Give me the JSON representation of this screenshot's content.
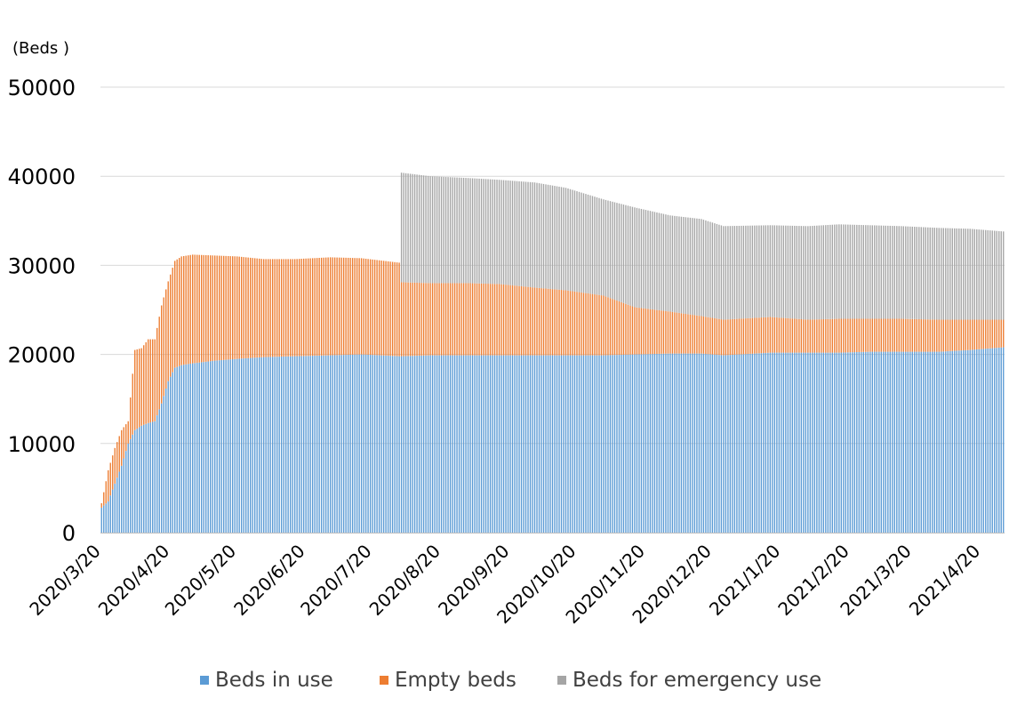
{
  "chart_data": {
    "type": "bar",
    "stacked": true,
    "unit_label": "(Beds )",
    "title": "",
    "xlabel": "",
    "ylabel": "",
    "ylim": [
      0,
      50000
    ],
    "yticks": [
      "0",
      "10000",
      "20000",
      "30000",
      "40000",
      "50000"
    ],
    "xlim": [
      "2020-03-20",
      "2021-04-30"
    ],
    "xtick_labels": [
      "2020/3/20",
      "2020/4/20",
      "2020/5/20",
      "2020/6/20",
      "2020/7/20",
      "2020/8/20",
      "2020/9/20",
      "2020/10/20",
      "2020/11/20",
      "2020/12/20",
      "2021/1/20",
      "2021/2/20",
      "2021/3/20",
      "2021/4/20"
    ],
    "grid": true,
    "legend_position": "bottom",
    "sampling": "values are read approximately at the listed dates; bars are drawn for each day between them",
    "x": [
      "2020-03-20",
      "2020-03-23",
      "2020-03-26",
      "2020-03-29",
      "2020-04-01",
      "2020-04-04",
      "2020-04-07",
      "2020-04-10",
      "2020-04-13",
      "2020-04-16",
      "2020-04-19",
      "2020-04-22",
      "2020-04-25",
      "2020-04-30",
      "2020-05-10",
      "2020-05-20",
      "2020-06-01",
      "2020-06-15",
      "2020-07-01",
      "2020-07-15",
      "2020-08-01",
      "2020-08-02",
      "2020-08-15",
      "2020-09-01",
      "2020-09-15",
      "2020-10-01",
      "2020-10-15",
      "2020-11-01",
      "2020-11-15",
      "2020-12-01",
      "2020-12-15",
      "2020-12-25",
      "2021-01-15",
      "2021-02-01",
      "2021-02-15",
      "2021-03-01",
      "2021-03-15",
      "2021-04-01",
      "2021-04-15",
      "2021-04-30"
    ],
    "series": [
      {
        "name": "Beds in use",
        "color": "#5b9bd5",
        "values": [
          2800,
          3500,
          5500,
          7500,
          10000,
          11500,
          12000,
          12300,
          12500,
          14500,
          17000,
          18500,
          18800,
          19000,
          19300,
          19500,
          19700,
          19800,
          19900,
          20000,
          19800,
          19800,
          19900,
          19900,
          19900,
          19900,
          19900,
          19900,
          20000,
          20100,
          20100,
          19900,
          20200,
          20200,
          20200,
          20300,
          20300,
          20300,
          20500,
          20800
        ]
      },
      {
        "name": "Empty beds",
        "color": "#ed7d31",
        "values": [
          500,
          3500,
          4000,
          4000,
          2500,
          9000,
          8700,
          9400,
          9200,
          11000,
          11200,
          12000,
          12200,
          12200,
          11800,
          11500,
          11000,
          10900,
          11000,
          10800,
          10500,
          8300,
          8100,
          8100,
          8000,
          7600,
          7300,
          6700,
          5300,
          4700,
          4200,
          4000,
          4000,
          3700,
          3800,
          3700,
          3700,
          3600,
          3400,
          3100
        ]
      },
      {
        "name": "Beds for emergency use",
        "color": "#a5a5a5",
        "values": [
          0,
          0,
          0,
          0,
          0,
          0,
          0,
          0,
          0,
          0,
          0,
          0,
          0,
          0,
          0,
          0,
          0,
          0,
          0,
          0,
          0,
          12300,
          12000,
          11800,
          11700,
          11800,
          11500,
          10800,
          11200,
          10800,
          10900,
          10500,
          10300,
          10500,
          10600,
          10500,
          10400,
          10300,
          10200,
          9900
        ]
      }
    ]
  }
}
